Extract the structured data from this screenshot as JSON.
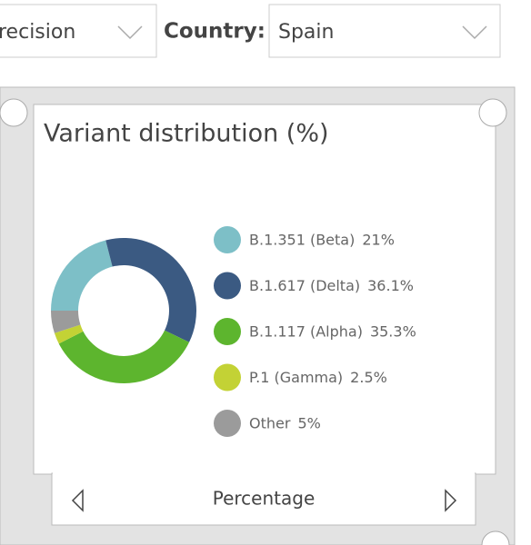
{
  "toolbar": {
    "left_dropdown": "recision",
    "country_label": "Country:",
    "country_value": "Spain"
  },
  "chart_data": {
    "type": "pie",
    "donut": true,
    "title": "Variant distribution (%)",
    "categories": [
      "B.1.351 (Beta)",
      "B.1.617 (Delta)",
      "B.1.117 (Alpha)",
      "P.1 (Gamma)",
      "Other"
    ],
    "values": [
      21,
      36.1,
      35.3,
      2.5,
      5
    ],
    "value_labels": [
      "21%",
      "36.1%",
      "35.3%",
      "2.5%",
      "5%"
    ],
    "colors": [
      "#7dbfc7",
      "#3b5a82",
      "#5db52e",
      "#c3d235",
      "#9b9b9b"
    ]
  },
  "footer": {
    "label": "Percentage"
  }
}
